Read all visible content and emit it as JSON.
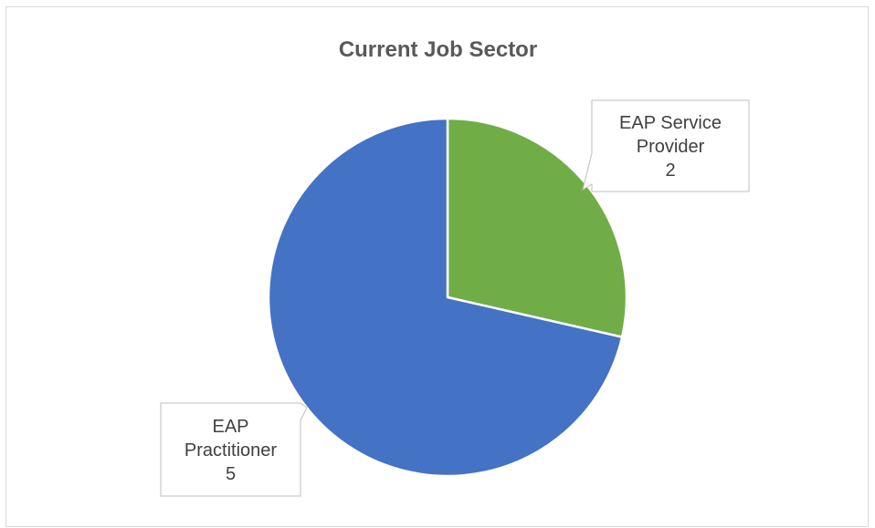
{
  "chart_data": {
    "type": "pie",
    "title": "Current Job Sector",
    "slices": [
      {
        "label": "EAP Service Provider",
        "label_lines": [
          "EAP Service",
          "Provider"
        ],
        "value": 2,
        "color": "#70ad47"
      },
      {
        "label": "EAP Practitioner",
        "label_lines": [
          "EAP",
          "Practitioner"
        ],
        "value": 5,
        "color": "#4472c4"
      }
    ],
    "legend": "none",
    "data_labels": "callout"
  }
}
